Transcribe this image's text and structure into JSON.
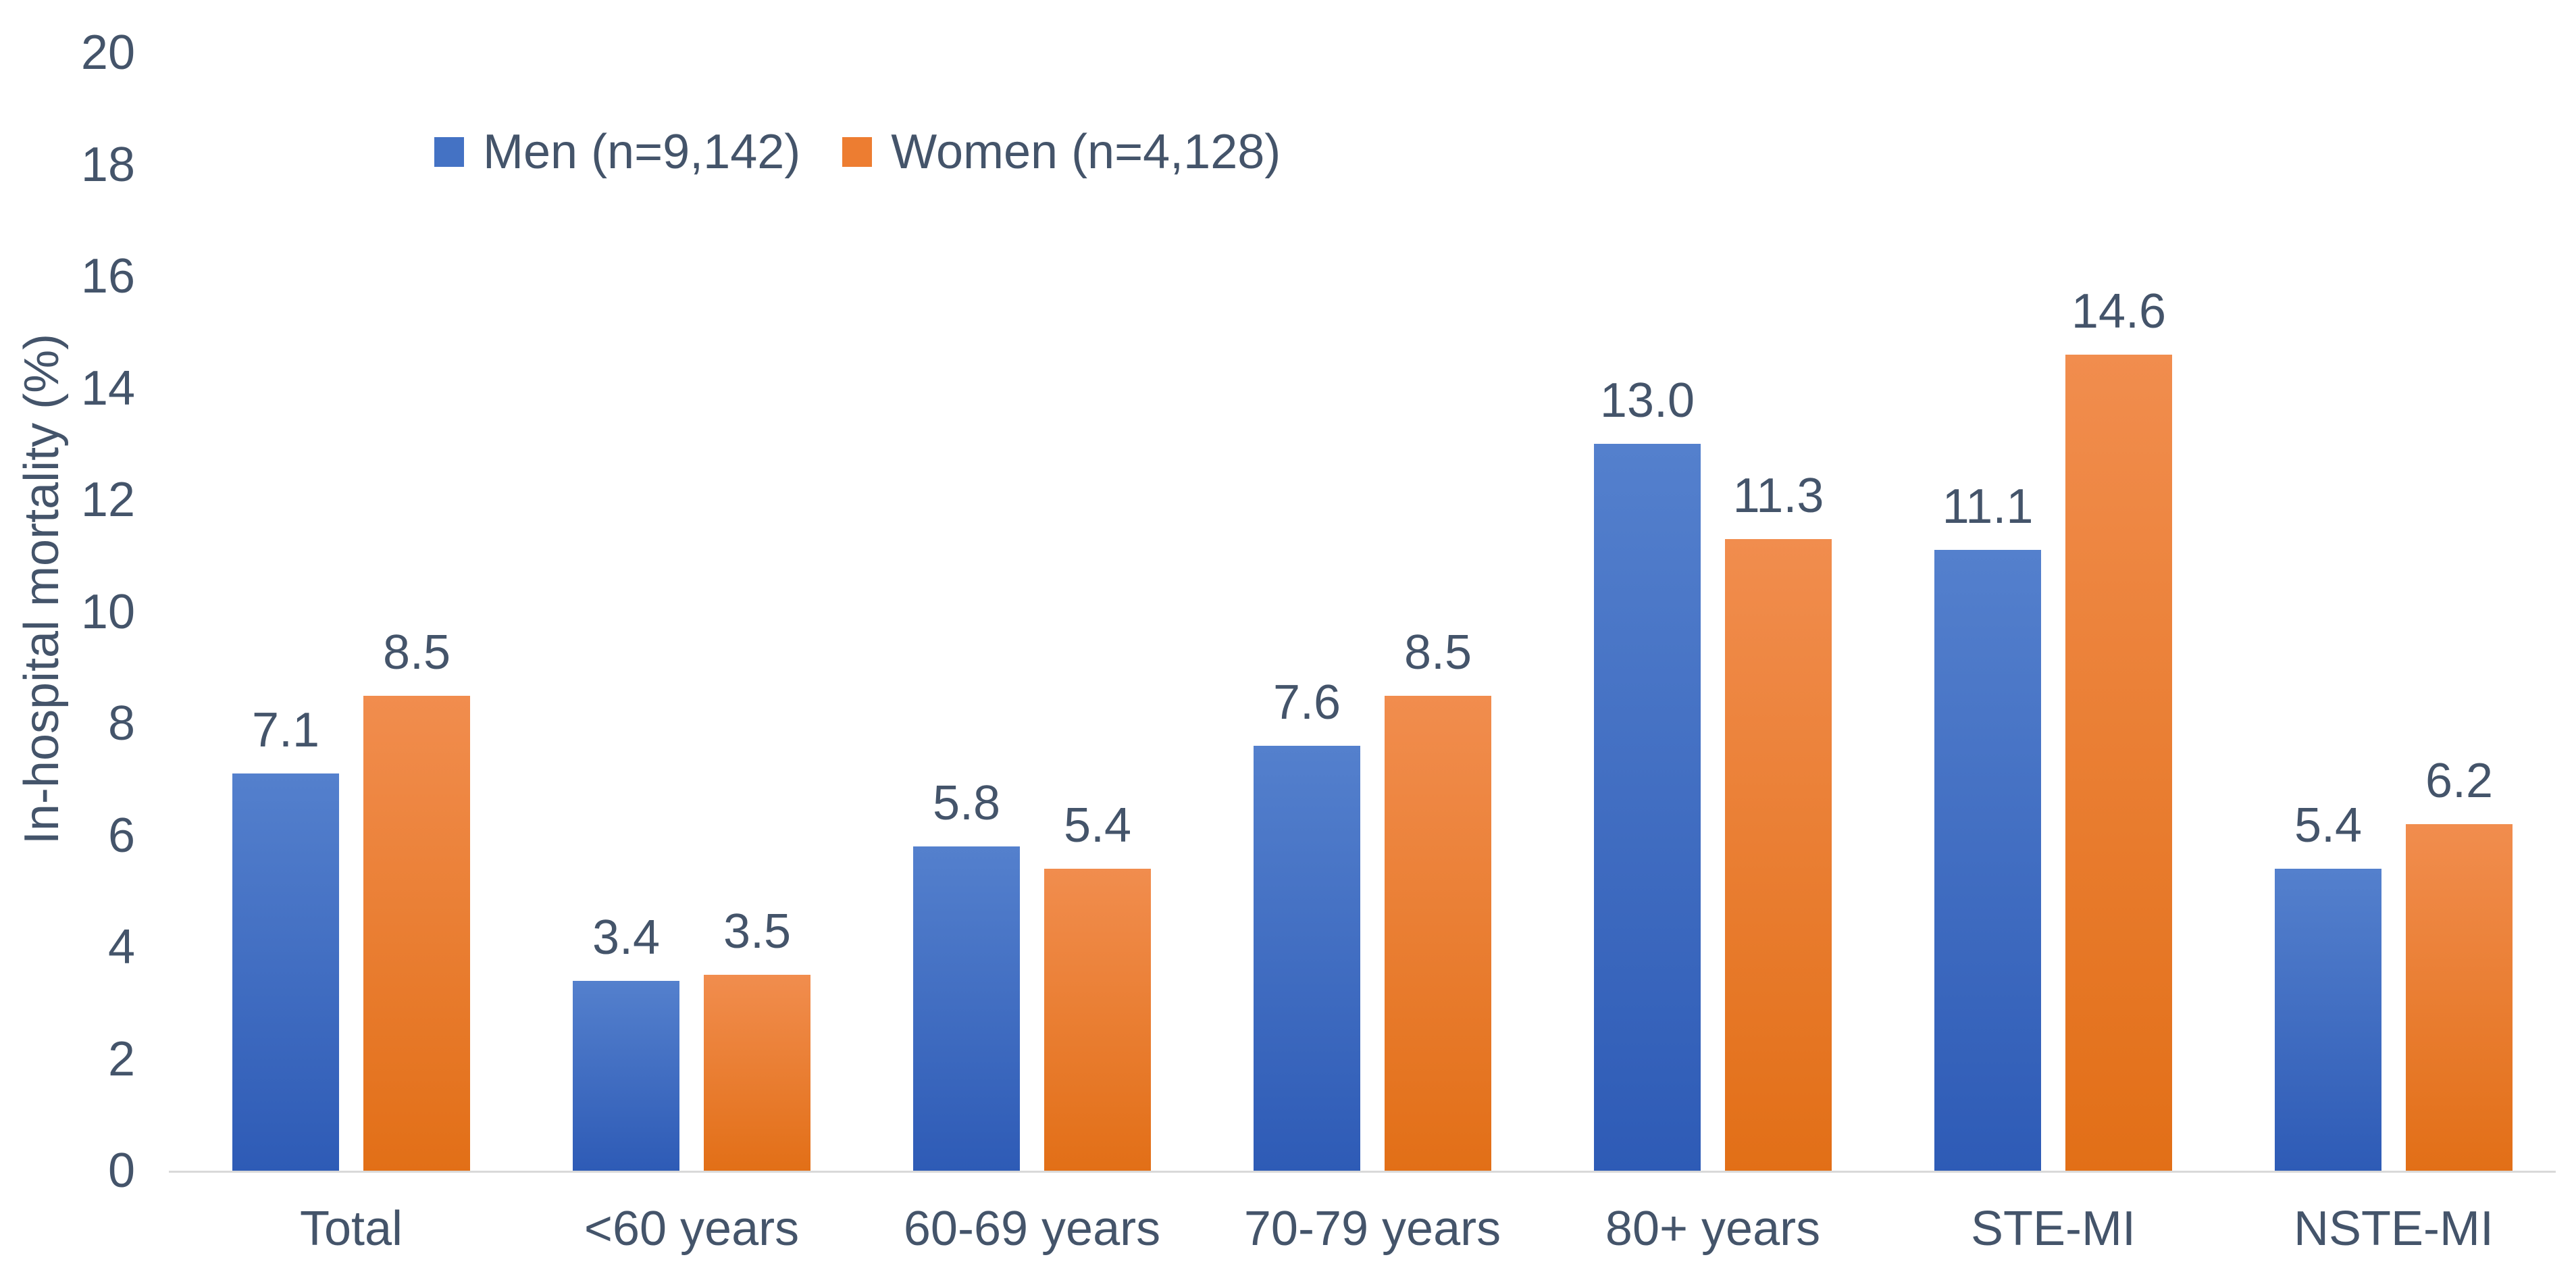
{
  "chart_data": {
    "type": "bar",
    "title": "",
    "xlabel": "",
    "ylabel": "In-hospital mortality (%)",
    "ylim": [
      0,
      20
    ],
    "y_ticks": [
      0,
      2,
      4,
      6,
      8,
      10,
      12,
      14,
      16,
      18,
      20
    ],
    "grid": false,
    "legend_position": "top-inside-left",
    "background_color": "#FFFFFF",
    "text_color": "#44546A",
    "axis_line_color": "#D9D9D9",
    "categories": [
      "Total",
      "<60 years",
      "60-69 years",
      "70-79 years",
      "80+ years",
      "STE-MI",
      "NSTE-MI"
    ],
    "series": [
      {
        "key": "men",
        "name": "Men (n=9,142)",
        "color": "#4472C4",
        "color_top": "#5480CD",
        "color_bottom": "#2E5BB6",
        "values": [
          7.1,
          3.4,
          5.8,
          7.6,
          13.0,
          11.1,
          5.4
        ],
        "labels": [
          "7.1",
          "3.4",
          "5.8",
          "7.6",
          "13.0",
          "11.1",
          "5.4"
        ]
      },
      {
        "key": "women",
        "name": "Women (n=4,128)",
        "color": "#ED7D31",
        "color_top": "#F18D4E",
        "color_bottom": "#E26F17",
        "values": [
          8.5,
          3.5,
          5.4,
          8.5,
          11.3,
          14.6,
          6.2
        ],
        "labels": [
          "8.5",
          "3.5",
          "5.4",
          "8.5",
          "11.3",
          "14.6",
          "6.2"
        ]
      }
    ]
  }
}
